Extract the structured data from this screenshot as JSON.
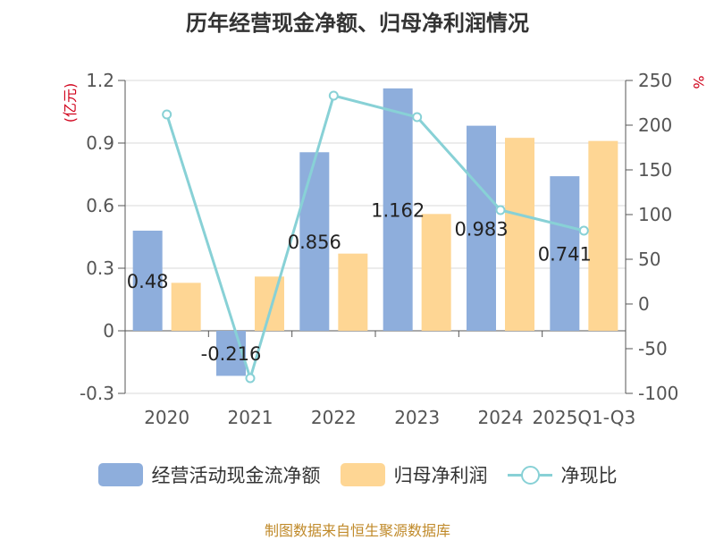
{
  "title": "历年经营现金净额、归母净利润情况",
  "source": "制图数据来自恒生聚源数据库",
  "chart_data": {
    "type": "bar",
    "categories": [
      "2020",
      "2021",
      "2022",
      "2023",
      "2024",
      "2025Q1-Q3"
    ],
    "series": [
      {
        "name": "经营活动现金流净额",
        "type": "bar",
        "axis": "left",
        "color": "#8eaedc",
        "values": [
          0.48,
          -0.216,
          0.856,
          1.162,
          0.983,
          0.741
        ]
      },
      {
        "name": "归母净利润",
        "type": "bar",
        "axis": "left",
        "color": "#fed694",
        "values": [
          0.23,
          0.26,
          0.37,
          0.56,
          0.925,
          0.91
        ]
      },
      {
        "name": "净现比",
        "type": "line",
        "axis": "right",
        "color": "#88d1d6",
        "values": [
          212,
          -83,
          233,
          209,
          105,
          82
        ]
      }
    ],
    "data_labels": [
      "0.48",
      "-0.216",
      "0.856",
      "1.162",
      "0.983",
      "0.741"
    ],
    "left_axis": {
      "label": "(亿元)",
      "ticks": [
        "1.2",
        "0.9",
        "0.6",
        "0.3",
        "0",
        "-0.3"
      ],
      "ylim": [
        -0.3,
        1.2
      ]
    },
    "right_axis": {
      "label": "%",
      "ticks": [
        "250",
        "200",
        "150",
        "100",
        "50",
        "0",
        "-50",
        "-100"
      ],
      "ylim": [
        -100,
        250
      ]
    },
    "grid": true,
    "legend_position": "bottom"
  }
}
